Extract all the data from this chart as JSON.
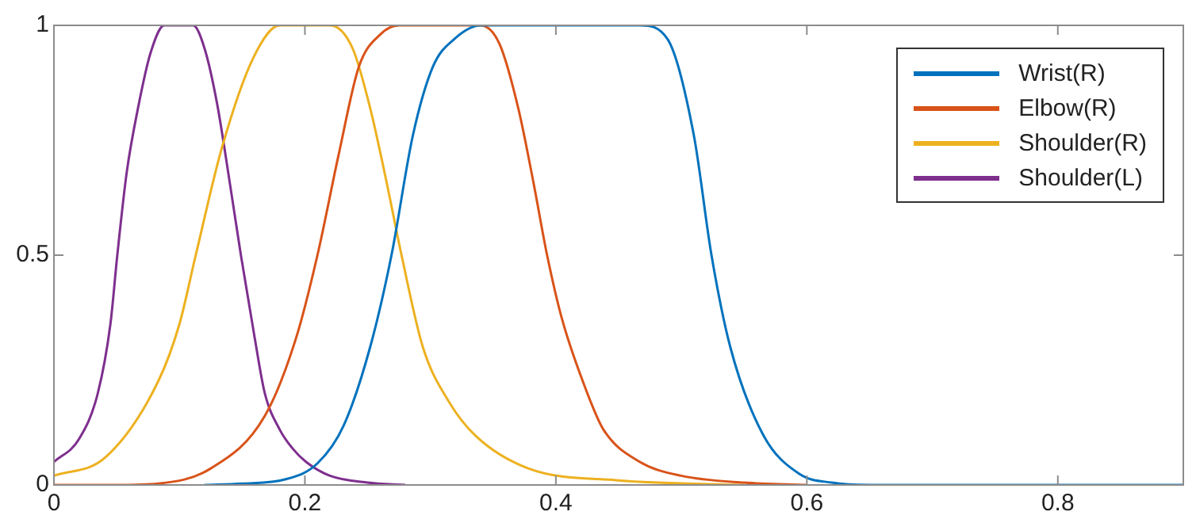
{
  "chart_data": {
    "type": "line",
    "xlim": [
      0,
      0.9
    ],
    "xticks": [
      0,
      0.2,
      0.4,
      0.6,
      0.8
    ],
    "ylim": [
      0,
      1
    ],
    "yticks": [
      0,
      0.5,
      1
    ],
    "grid": false,
    "legend": "top right",
    "marker": "none",
    "line_style": "solid",
    "series": [
      {
        "name": "Wrist(R)",
        "color": "#0072bd",
        "x": [
          0.12,
          0.15,
          0.184,
          0.21,
          0.231,
          0.252,
          0.269,
          0.286,
          0.302,
          0.319,
          0.34,
          0.467,
          0.489,
          0.51,
          0.524,
          0.539,
          0.565,
          0.594,
          0.62,
          0.65,
          0.9
        ],
        "values": [
          0,
          0.003,
          0.012,
          0.047,
          0.13,
          0.3,
          0.5,
          0.76,
          0.91,
          0.97,
          1,
          1,
          0.97,
          0.76,
          0.5,
          0.3,
          0.11,
          0.024,
          0.005,
          0,
          0
        ]
      },
      {
        "name": "Elbow(R)",
        "color": "#d95319",
        "x": [
          0,
          0.05,
          0.083,
          0.125,
          0.168,
          0.193,
          0.21,
          0.227,
          0.243,
          0.26,
          0.275,
          0.34,
          0.355,
          0.37,
          0.382,
          0.393,
          0.405,
          0.425,
          0.438,
          0.467,
          0.5,
          0.55,
          0.6
        ],
        "values": [
          0,
          0,
          0.003,
          0.036,
          0.15,
          0.32,
          0.5,
          0.72,
          0.91,
          0.98,
          1,
          1,
          0.96,
          0.82,
          0.66,
          0.5,
          0.36,
          0.2,
          0.12,
          0.05,
          0.02,
          0.005,
          0
        ]
      },
      {
        "name": "Shoulder(R)",
        "color": "#edb120",
        "x": [
          0,
          0.041,
          0.083,
          0.1,
          0.113,
          0.134,
          0.159,
          0.18,
          0.22,
          0.238,
          0.252,
          0.265,
          0.277,
          0.294,
          0.315,
          0.336,
          0.378,
          0.45,
          0.55
        ],
        "values": [
          0.02,
          0.06,
          0.225,
          0.35,
          0.5,
          0.735,
          0.93,
          1,
          1,
          0.95,
          0.82,
          0.66,
          0.5,
          0.3,
          0.18,
          0.107,
          0.036,
          0.01,
          0
        ]
      },
      {
        "name": "Shoulder(L)",
        "color": "#7e2f8e",
        "x": [
          0,
          0.02,
          0.035,
          0.045,
          0.0505,
          0.058,
          0.067,
          0.077,
          0.088,
          0.111,
          0.12,
          0.13,
          0.14,
          0.149,
          0.16,
          0.168,
          0.18,
          0.19,
          0.201,
          0.22,
          0.25,
          0.28
        ],
        "values": [
          0.05,
          0.1,
          0.2,
          0.35,
          0.5,
          0.68,
          0.82,
          0.94,
          1,
          1,
          0.95,
          0.83,
          0.66,
          0.5,
          0.32,
          0.2,
          0.12,
          0.08,
          0.05,
          0.02,
          0.005,
          0
        ]
      }
    ]
  }
}
